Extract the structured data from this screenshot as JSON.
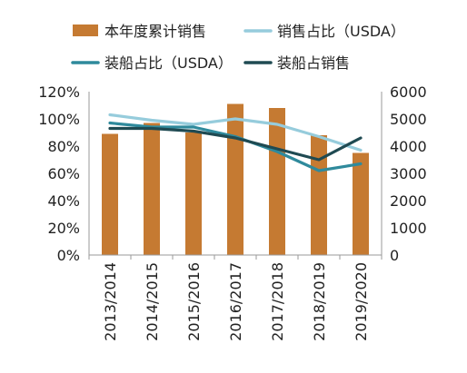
{
  "chart_data": {
    "type": "bar",
    "categories": [
      "2013/2014",
      "2014/2015",
      "2015/2016",
      "2016/2017",
      "2017/2018",
      "2018/2019",
      "2019/2020"
    ],
    "series": [
      {
        "name": "本年度累计销售",
        "kind": "bar",
        "axis": "right",
        "color": "#C57A32",
        "values": [
          4450,
          4850,
          4500,
          5550,
          5400,
          4400,
          3750
        ]
      },
      {
        "name": "销售占比（USDA）",
        "kind": "line",
        "axis": "left",
        "color": "#96CCDC",
        "values": [
          1.03,
          0.99,
          0.96,
          1.0,
          0.96,
          0.87,
          0.77
        ]
      },
      {
        "name": "装船占比（USDA）",
        "kind": "line",
        "axis": "left",
        "color": "#2F8A9C",
        "values": [
          0.97,
          0.94,
          0.94,
          0.87,
          0.76,
          0.62,
          0.67
        ]
      },
      {
        "name": "装船占销售",
        "kind": "line",
        "axis": "left",
        "color": "#1F4A52",
        "values": [
          0.93,
          0.93,
          0.91,
          0.86,
          0.78,
          0.7,
          0.86
        ]
      }
    ],
    "y_left": {
      "ticks": [
        "0%",
        "20%",
        "40%",
        "60%",
        "80%",
        "100%",
        "120%"
      ],
      "range": [
        0,
        1.2
      ]
    },
    "y_right": {
      "ticks": [
        "0",
        "1000",
        "2000",
        "3000",
        "4000",
        "5000",
        "6000"
      ],
      "range": [
        0,
        6000
      ]
    },
    "grid": false,
    "legend_position": "top",
    "xlabel": "",
    "ylabel": "",
    "title": ""
  }
}
